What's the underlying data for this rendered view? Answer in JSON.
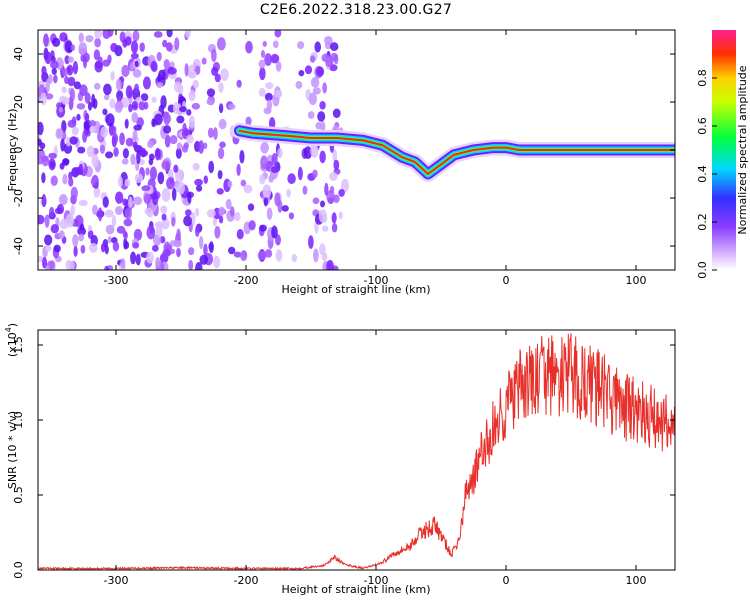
{
  "title": "C2E6.2022.318.23.00.G27",
  "colors": {
    "snr_line": "#e8302b",
    "axis": "#000000",
    "track": "#ff2020"
  },
  "chart_data": [
    {
      "type": "heatmap",
      "xlabel": "Height of straight line (km)",
      "ylabel": "Frequency (Hz)",
      "xlim": [
        -360,
        130
      ],
      "ylim": [
        -50,
        50
      ],
      "x_ticks": [
        "-300",
        "-200",
        "-100",
        "0",
        "100"
      ],
      "y_ticks": [
        "40",
        "20",
        "0",
        "-20",
        "-40"
      ],
      "colorbar": {
        "label": "Normalized spectral amplitude",
        "range": [
          0,
          1
        ],
        "ticks": [
          "0.0",
          "0.2",
          "0.4",
          "0.6",
          "0.8"
        ]
      },
      "noise_region_x": [
        -360,
        -130
      ],
      "signal_track": [
        {
          "x": -205,
          "y": 8
        },
        {
          "x": -195,
          "y": 7
        },
        {
          "x": -170,
          "y": 6
        },
        {
          "x": -150,
          "y": 5
        },
        {
          "x": -130,
          "y": 5
        },
        {
          "x": -110,
          "y": 4
        },
        {
          "x": -95,
          "y": 2
        },
        {
          "x": -80,
          "y": -3
        },
        {
          "x": -70,
          "y": -5
        },
        {
          "x": -60,
          "y": -10
        },
        {
          "x": -50,
          "y": -6
        },
        {
          "x": -40,
          "y": -2
        },
        {
          "x": -25,
          "y": 0
        },
        {
          "x": -10,
          "y": 1
        },
        {
          "x": 0,
          "y": 1
        },
        {
          "x": 10,
          "y": 0
        },
        {
          "x": 130,
          "y": 0
        }
      ]
    },
    {
      "type": "line",
      "xlabel": "Height of straight line (km)",
      "ylabel": "SNR (10 * v/v)",
      "y_multiplier": "(x10",
      "y_multiplier_exp": "4",
      "y_multiplier_close": ")",
      "xlim": [
        -360,
        130
      ],
      "ylim": [
        0,
        1.6
      ],
      "x_ticks": [
        "-300",
        "-200",
        "-100",
        "0",
        "100"
      ],
      "y_ticks": [
        "0.0",
        "0.5",
        "1.0",
        "1.5"
      ],
      "series": [
        {
          "x": [
            -360,
            -300,
            -250,
            -200,
            -160,
            -140,
            -132,
            -125,
            -110,
            -95,
            -85,
            -75,
            -65,
            -55,
            -48,
            -42,
            -36,
            -30,
            -24,
            -18,
            -12,
            -6,
            0,
            6,
            12,
            20,
            30,
            40,
            50,
            60,
            70,
            80,
            90,
            100,
            110,
            120,
            130
          ],
          "y": [
            0.01,
            0.01,
            0.015,
            0.01,
            0.01,
            0.03,
            0.09,
            0.04,
            0.01,
            0.05,
            0.12,
            0.15,
            0.25,
            0.3,
            0.2,
            0.1,
            0.2,
            0.55,
            0.65,
            0.78,
            0.9,
            1.0,
            1.1,
            1.15,
            1.22,
            1.25,
            1.3,
            1.28,
            1.3,
            1.25,
            1.22,
            1.15,
            1.1,
            1.05,
            1.02,
            1.0,
            0.95
          ]
        }
      ]
    }
  ]
}
